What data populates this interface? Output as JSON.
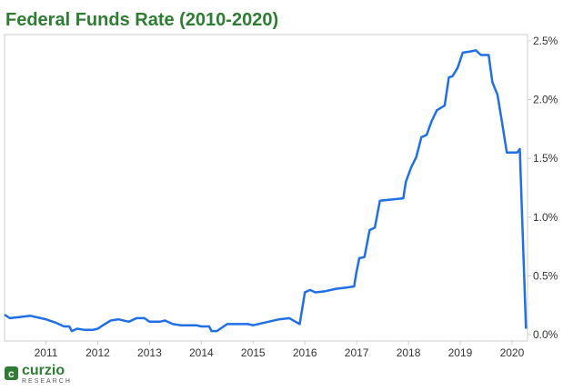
{
  "chart_data": {
    "type": "line",
    "title": "Federal Funds Rate (2010-2020)",
    "x": [
      2010.2,
      2010.3,
      2010.5,
      2010.7,
      2010.9,
      2011.0,
      2011.2,
      2011.35,
      2011.45,
      2011.5,
      2011.6,
      2011.75,
      2011.9,
      2012.0,
      2012.1,
      2012.25,
      2012.4,
      2012.6,
      2012.75,
      2012.9,
      2013.0,
      2013.2,
      2013.3,
      2013.45,
      2013.6,
      2013.9,
      2014.0,
      2014.15,
      2014.2,
      2014.3,
      2014.5,
      2014.9,
      2015.0,
      2015.3,
      2015.5,
      2015.7,
      2015.9,
      2016.0,
      2016.1,
      2016.2,
      2016.4,
      2016.6,
      2016.8,
      2016.95,
      2017.0,
      2017.05,
      2017.15,
      2017.25,
      2017.35,
      2017.45,
      2017.9,
      2017.95,
      2018.05,
      2018.15,
      2018.25,
      2018.35,
      2018.45,
      2018.55,
      2018.7,
      2018.78,
      2018.85,
      2018.95,
      2019.05,
      2019.2,
      2019.3,
      2019.4,
      2019.55,
      2019.62,
      2019.72,
      2019.8,
      2019.9,
      2020.0,
      2020.1,
      2020.15,
      2020.27
    ],
    "values": [
      0.17,
      0.14,
      0.15,
      0.16,
      0.14,
      0.13,
      0.1,
      0.07,
      0.07,
      0.03,
      0.05,
      0.04,
      0.04,
      0.05,
      0.08,
      0.12,
      0.13,
      0.11,
      0.14,
      0.14,
      0.11,
      0.11,
      0.12,
      0.09,
      0.08,
      0.08,
      0.07,
      0.07,
      0.03,
      0.03,
      0.09,
      0.09,
      0.08,
      0.11,
      0.13,
      0.14,
      0.09,
      0.36,
      0.38,
      0.36,
      0.37,
      0.39,
      0.4,
      0.41,
      0.54,
      0.65,
      0.66,
      0.89,
      0.91,
      1.14,
      1.16,
      1.3,
      1.42,
      1.51,
      1.68,
      1.7,
      1.82,
      1.91,
      1.95,
      2.19,
      2.2,
      2.27,
      2.4,
      2.41,
      2.42,
      2.38,
      2.38,
      2.15,
      2.04,
      1.83,
      1.55,
      1.55,
      1.55,
      1.58,
      0.05
    ],
    "color": "#1f6fe8",
    "xlim": [
      2010.2,
      2020.3
    ],
    "xticks": [
      2011,
      2012,
      2013,
      2014,
      2015,
      2016,
      2017,
      2018,
      2019,
      2020
    ],
    "ylim": [
      0,
      2.5
    ],
    "yticks": [
      {
        "value": 0,
        "label": "0.0%"
      },
      {
        "value": 0.5,
        "label": "0.5%"
      },
      {
        "value": 1,
        "label": "1.0%"
      },
      {
        "value": 1.5,
        "label": "1.5%"
      },
      {
        "value": 2,
        "label": "2.0%"
      },
      {
        "value": 2.5,
        "label": "2.5%"
      }
    ]
  },
  "logo": {
    "name": "curzio",
    "tagline": "RESEARCH"
  }
}
